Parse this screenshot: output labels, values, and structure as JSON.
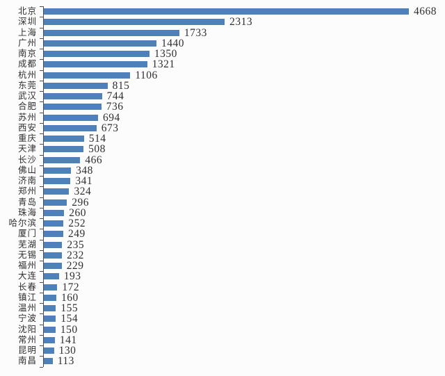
{
  "page": {
    "background_color": "#fcfcfc"
  },
  "chart_data": {
    "type": "bar",
    "orientation": "horizontal",
    "title": "",
    "xlabel": "",
    "ylabel": "",
    "grid": false,
    "legend": false,
    "value_labels_shown": true,
    "xlim": [
      0,
      4700
    ],
    "bar_color": "#4e80ba",
    "axis_color": "#4d4d4d",
    "text_color": "#2f2f2f",
    "categories": [
      "北京",
      "深圳",
      "上海",
      "广州",
      "南京",
      "成都",
      "杭州",
      "东莞",
      "武汉",
      "合肥",
      "苏州",
      "西安",
      "重庆",
      "天津",
      "长沙",
      "佛山",
      "济南",
      "郑州",
      "青岛",
      "珠海",
      "哈尔滨",
      "厦门",
      "芜湖",
      "无锡",
      "福州",
      "大连",
      "长春",
      "镇江",
      "温州",
      "宁波",
      "沈阳",
      "常州",
      "昆明",
      "南昌"
    ],
    "values": [
      4668,
      2313,
      1733,
      1440,
      1350,
      1321,
      1106,
      815,
      744,
      736,
      694,
      673,
      514,
      508,
      466,
      348,
      341,
      324,
      296,
      260,
      252,
      249,
      235,
      232,
      229,
      193,
      172,
      160,
      155,
      154,
      150,
      141,
      130,
      113
    ]
  }
}
